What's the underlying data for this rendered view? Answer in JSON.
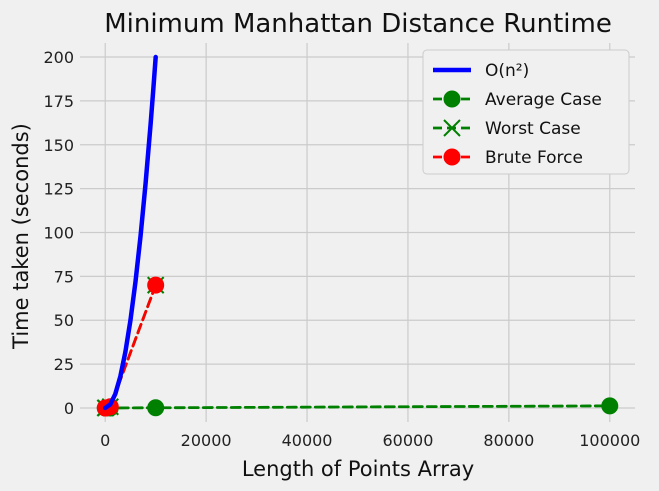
{
  "chart_data": {
    "type": "line",
    "title": "Minimum Manhattan Distance Runtime",
    "xlabel": "Length of Points Array",
    "ylabel": "Time taken (seconds)",
    "xlim": [
      -5000,
      105000
    ],
    "ylim": [
      -8,
      208
    ],
    "xticks": [
      0,
      20000,
      40000,
      60000,
      80000,
      100000
    ],
    "yticks": [
      0,
      25,
      50,
      75,
      100,
      125,
      150,
      175,
      200
    ],
    "grid": true,
    "legend_position": "top-right",
    "series": [
      {
        "name": "O(n²)",
        "kind": "curve",
        "style": "solid",
        "color": "#0000ff",
        "formula": "y = 2e-6 * x^2",
        "x": [
          0,
          1000,
          2000,
          3000,
          4000,
          5000,
          6000,
          7000,
          8000,
          9000,
          9500,
          10000
        ],
        "y": [
          0,
          2,
          8,
          18,
          32,
          50,
          72,
          98,
          128,
          162,
          180.5,
          200
        ]
      },
      {
        "name": "Average Case",
        "kind": "markers",
        "style": "dashed",
        "marker": "circle",
        "color": "#008000",
        "x": [
          10,
          100,
          1000,
          10000,
          100000
        ],
        "y": [
          0,
          0,
          0.01,
          0.1,
          1.2
        ]
      },
      {
        "name": "Worst Case",
        "kind": "markers",
        "style": "dashed",
        "marker": "x",
        "color": "#008000",
        "x": [
          10,
          100,
          1000,
          10000
        ],
        "y": [
          0,
          0,
          0.7,
          70
        ]
      },
      {
        "name": "Brute Force",
        "kind": "markers",
        "style": "dashed",
        "marker": "circle",
        "color": "#ff0000",
        "x": [
          10,
          100,
          1000,
          10000
        ],
        "y": [
          0,
          0,
          0.7,
          70
        ]
      }
    ]
  }
}
